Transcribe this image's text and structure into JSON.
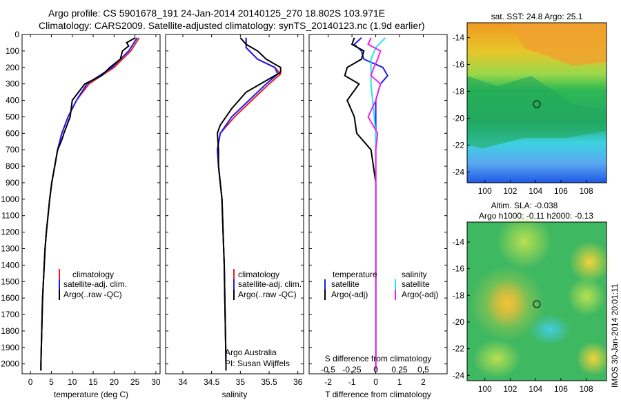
{
  "header": {
    "line1": "Argo profile: CS 5901678_191 24-Jan-2014 20140125_270 18.802S 103.971E",
    "line2": "Climatology: CARS2009. Satellite-adjusted climatology: synTS_20140123.nc (1.9d earlier)"
  },
  "colors": {
    "climatology": "#e8201c",
    "satellite": "#1a1aff",
    "argo": "#000000",
    "sal_satellite": "#22e4ee",
    "sal_argo": "#ee22ee"
  },
  "panel_temp": {
    "xlabel": "temperature (deg C)",
    "xticks": [
      "0",
      "5",
      "10",
      "15",
      "20",
      "25",
      "30"
    ],
    "legend": [
      "climatology",
      "satellite-adj. clim.",
      "Argo(..raw -QC)"
    ]
  },
  "panel_sal": {
    "xlabel": "salinity",
    "xticks": [
      "34",
      "34.5",
      "35",
      "35.5",
      "36"
    ],
    "legend": [
      "climatology",
      "satellite-adj. clim.",
      "Argo(..raw -QC)"
    ],
    "note1": "Argo Australia",
    "note2": "PI: Susan Wijffels"
  },
  "panel_diff": {
    "xlabel": "T difference from climatology",
    "s_label": "S difference from climatology",
    "xticks": [
      "-2",
      "-1",
      "0",
      "1",
      "2"
    ],
    "sticks": [
      "-0.5",
      "-0.25",
      "0",
      "0.25",
      "0.5"
    ],
    "legend_temp_title": "temperature",
    "legend_sal_title": "salinity",
    "legend_temp": [
      "satellite",
      "Argo(-adj)"
    ],
    "legend_sal": [
      "satellite",
      "Argo(-adj)"
    ]
  },
  "depth_ticks": [
    "0",
    "100",
    "200",
    "300",
    "400",
    "500",
    "600",
    "700",
    "800",
    "900",
    "1000",
    "1100",
    "1200",
    "1300",
    "1400",
    "1500",
    "1600",
    "1700",
    "1800",
    "1900",
    "2000"
  ],
  "map_sst": {
    "title": "sat. SST: 24.8  Argo: 25.1",
    "xticks": [
      "100",
      "102",
      "104",
      "106",
      "108"
    ],
    "yticks": [
      "-14",
      "-16",
      "-18",
      "-20",
      "-22",
      "-24"
    ]
  },
  "map_sla": {
    "title1": "Altim. SLA: -0.038",
    "title2": "Argo h1000: -0.11  h2000: -0.13",
    "xticks": [
      "100",
      "102",
      "104",
      "106",
      "108"
    ],
    "yticks": [
      "-14",
      "-16",
      "-18",
      "-20",
      "-22",
      "-24"
    ]
  },
  "side_label": "IMOS 30-Jan-2014 20:01:11",
  "chart_data": [
    {
      "type": "line",
      "xlim": [
        -2,
        31
      ],
      "ylim": [
        2060,
        0
      ],
      "ylabel": "",
      "xlabel": "temperature (deg C)",
      "series": [
        {
          "name": "climatology",
          "color": "#e8201c",
          "points": [
            [
              26,
              20
            ],
            [
              25,
              60
            ],
            [
              24,
              100
            ],
            [
              22,
              150
            ],
            [
              20,
              200
            ],
            [
              17,
              250
            ],
            [
              14,
              300
            ],
            [
              11,
              400
            ],
            [
              9,
              500
            ],
            [
              7.5,
              600
            ],
            [
              6.5,
              700
            ],
            [
              5.8,
              800
            ],
            [
              5.1,
              900
            ],
            [
              4.6,
              1000
            ],
            [
              4.2,
              1100
            ],
            [
              3.8,
              1200
            ],
            [
              3.5,
              1300
            ],
            [
              3.3,
              1400
            ],
            [
              3.1,
              1500
            ],
            [
              2.9,
              1600
            ],
            [
              2.8,
              1700
            ],
            [
              2.7,
              1800
            ],
            [
              2.6,
              1900
            ],
            [
              2.5,
              2000
            ],
            [
              2.5,
              2040
            ]
          ]
        },
        {
          "name": "satellite-adj. clim.",
          "color": "#1a1aff",
          "points": [
            [
              25.5,
              20
            ],
            [
              24.5,
              60
            ],
            [
              23.5,
              100
            ],
            [
              21.5,
              150
            ],
            [
              19.5,
              200
            ],
            [
              16.5,
              250
            ],
            [
              13.5,
              300
            ],
            [
              11,
              400
            ],
            [
              9,
              500
            ],
            [
              7.5,
              600
            ],
            [
              6.5,
              700
            ],
            [
              5.8,
              800
            ],
            [
              5.1,
              900
            ],
            [
              4.6,
              1000
            ],
            [
              4.2,
              1100
            ],
            [
              3.8,
              1200
            ],
            [
              3.5,
              1300
            ],
            [
              3.3,
              1400
            ],
            [
              3.1,
              1500
            ],
            [
              2.9,
              1600
            ],
            [
              2.8,
              1700
            ],
            [
              2.7,
              1800
            ],
            [
              2.6,
              1900
            ],
            [
              2.5,
              2000
            ],
            [
              2.5,
              2040
            ]
          ]
        },
        {
          "name": "Argo(..raw -QC)",
          "color": "#000000",
          "points": [
            [
              25.1,
              20
            ],
            [
              23,
              50
            ],
            [
              23.5,
              70
            ],
            [
              22,
              100
            ],
            [
              21.5,
              150
            ],
            [
              19,
              200
            ],
            [
              17,
              250
            ],
            [
              13,
              300
            ],
            [
              10,
              400
            ],
            [
              9.5,
              500
            ],
            [
              8,
              600
            ],
            [
              7.5,
              640
            ],
            [
              6.5,
              700
            ],
            [
              5.8,
              800
            ],
            [
              5.1,
              900
            ],
            [
              4.6,
              1000
            ],
            [
              4.2,
              1100
            ],
            [
              3.8,
              1200
            ],
            [
              3.5,
              1300
            ],
            [
              3.3,
              1400
            ],
            [
              3.1,
              1500
            ],
            [
              2.9,
              1600
            ],
            [
              2.8,
              1700
            ],
            [
              2.7,
              1800
            ],
            [
              2.6,
              1900
            ],
            [
              2.5,
              2000
            ],
            [
              2.5,
              2040
            ]
          ]
        }
      ]
    },
    {
      "type": "line",
      "xlim": [
        33.7,
        36.1
      ],
      "ylim": [
        2060,
        0
      ],
      "xlabel": "salinity",
      "series": [
        {
          "name": "climatology",
          "color": "#e8201c",
          "points": [
            [
              35.1,
              20
            ],
            [
              35.1,
              80
            ],
            [
              35.3,
              150
            ],
            [
              35.6,
              200
            ],
            [
              35.7,
              240
            ],
            [
              35.5,
              300
            ],
            [
              35.2,
              400
            ],
            [
              34.9,
              500
            ],
            [
              34.65,
              600
            ],
            [
              34.6,
              700
            ],
            [
              34.62,
              800
            ],
            [
              34.65,
              900
            ],
            [
              34.68,
              1000
            ],
            [
              34.7,
              1200
            ],
            [
              34.72,
              1400
            ],
            [
              34.73,
              1600
            ],
            [
              34.74,
              1800
            ],
            [
              34.75,
              2000
            ],
            [
              34.75,
              2040
            ]
          ]
        },
        {
          "name": "satellite-adj. clim.",
          "color": "#1a1aff",
          "points": [
            [
              35.1,
              20
            ],
            [
              35.1,
              80
            ],
            [
              35.3,
              150
            ],
            [
              35.6,
              200
            ],
            [
              35.65,
              240
            ],
            [
              35.45,
              300
            ],
            [
              35.15,
              400
            ],
            [
              34.85,
              500
            ],
            [
              34.65,
              600
            ],
            [
              34.6,
              700
            ],
            [
              34.62,
              800
            ],
            [
              34.65,
              900
            ],
            [
              34.68,
              1000
            ],
            [
              34.7,
              1200
            ],
            [
              34.72,
              1400
            ],
            [
              34.73,
              1600
            ],
            [
              34.74,
              1800
            ],
            [
              34.75,
              2000
            ],
            [
              34.75,
              2040
            ]
          ]
        },
        {
          "name": "Argo(..raw -QC)",
          "color": "#000000",
          "points": [
            [
              35,
              20
            ],
            [
              35.1,
              60
            ],
            [
              35.3,
              100
            ],
            [
              35.45,
              150
            ],
            [
              35.7,
              200
            ],
            [
              35.7,
              230
            ],
            [
              35.45,
              280
            ],
            [
              35.1,
              350
            ],
            [
              34.85,
              450
            ],
            [
              34.65,
              550
            ],
            [
              34.6,
              600
            ],
            [
              34.62,
              700
            ],
            [
              34.62,
              800
            ],
            [
              34.65,
              900
            ],
            [
              34.68,
              1000
            ],
            [
              34.7,
              1200
            ],
            [
              34.72,
              1400
            ],
            [
              34.73,
              1600
            ],
            [
              34.74,
              1800
            ],
            [
              34.75,
              2000
            ],
            [
              34.75,
              2040
            ]
          ]
        }
      ]
    },
    {
      "type": "line",
      "xlim": [
        -2.8,
        3
      ],
      "ylim": [
        2060,
        0
      ],
      "xlabel": "T difference from climatology",
      "series": [
        {
          "name": "temperature satellite",
          "color": "#1a1aff",
          "points": [
            [
              -0.6,
              20
            ],
            [
              -0.9,
              60
            ],
            [
              -0.6,
              100
            ],
            [
              -0.5,
              150
            ],
            [
              0.3,
              200
            ],
            [
              0.5,
              250
            ],
            [
              0.2,
              300
            ],
            [
              0,
              400
            ],
            [
              0,
              600
            ],
            [
              0,
              2040
            ]
          ]
        },
        {
          "name": "temperature Argo(-adj)",
          "color": "#000000",
          "points": [
            [
              -0.9,
              20
            ],
            [
              -1,
              60
            ],
            [
              -0.5,
              100
            ],
            [
              -0.6,
              150
            ],
            [
              -1.2,
              200
            ],
            [
              -1.3,
              250
            ],
            [
              -0.7,
              300
            ],
            [
              -1.2,
              400
            ],
            [
              -0.9,
              500
            ],
            [
              -0.8,
              600
            ],
            [
              -0.2,
              700
            ],
            [
              0,
              900
            ],
            [
              0,
              1200
            ],
            [
              0,
              2040
            ]
          ]
        }
      ]
    },
    {
      "type": "line",
      "xlim": [
        -0.7,
        0.75
      ],
      "ylim": [
        2060,
        0
      ],
      "xlabel": "S difference from climatology",
      "series": [
        {
          "name": "salinity satellite",
          "color": "#22e4ee",
          "points": [
            [
              0.1,
              20
            ],
            [
              0,
              80
            ],
            [
              -0.05,
              150
            ],
            [
              -0.05,
              300
            ],
            [
              0,
              600
            ],
            [
              0,
              1000
            ],
            [
              0,
              2040
            ]
          ]
        },
        {
          "name": "salinity Argo(-adj)",
          "color": "#ee22ee",
          "points": [
            [
              -0.05,
              20
            ],
            [
              -0.08,
              60
            ],
            [
              0.05,
              100
            ],
            [
              0.02,
              150
            ],
            [
              -0.02,
              200
            ],
            [
              -0.05,
              250
            ],
            [
              0.05,
              300
            ],
            [
              0,
              400
            ],
            [
              -0.08,
              500
            ],
            [
              0.02,
              600
            ],
            [
              0,
              700
            ],
            [
              0,
              1000
            ],
            [
              0,
              2040
            ]
          ]
        }
      ]
    }
  ]
}
